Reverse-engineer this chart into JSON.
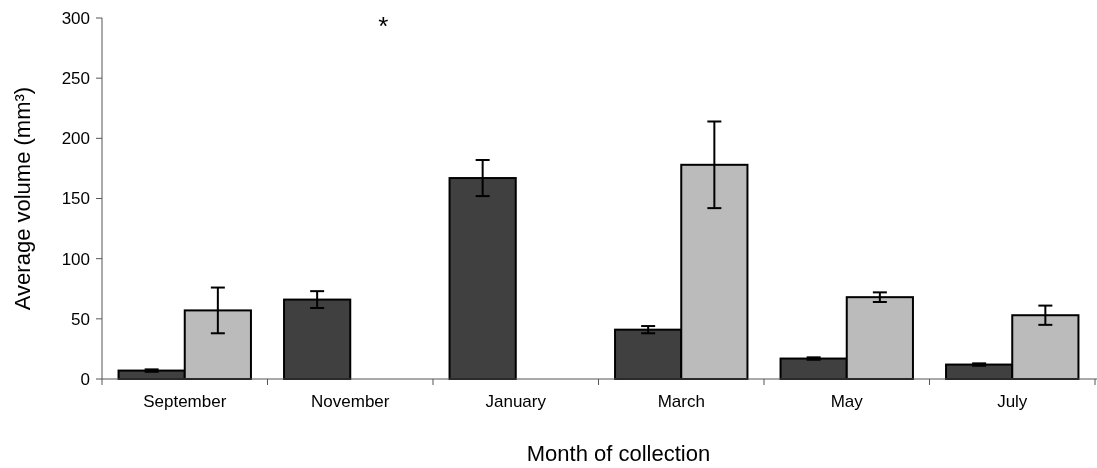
{
  "chart_data": {
    "type": "bar",
    "xlabel": "Month of collection",
    "ylabel": "Average volume (mm³)",
    "categories": [
      "September",
      "November",
      "January",
      "March",
      "May",
      "July"
    ],
    "series": [
      {
        "color": "#404040",
        "values": [
          7,
          66,
          167,
          41,
          17,
          12
        ],
        "errors": [
          1,
          7,
          15,
          3,
          1,
          1
        ]
      },
      {
        "color": "#bbbbbb",
        "values": [
          57,
          null,
          0,
          178,
          68,
          53
        ],
        "errors": [
          19,
          null,
          null,
          36,
          4,
          8
        ]
      }
    ],
    "ylim": [
      0,
      300
    ],
    "yticks": [
      0,
      50,
      100,
      150,
      200,
      250,
      300
    ],
    "grid": false,
    "annotations": [
      "*"
    ]
  }
}
